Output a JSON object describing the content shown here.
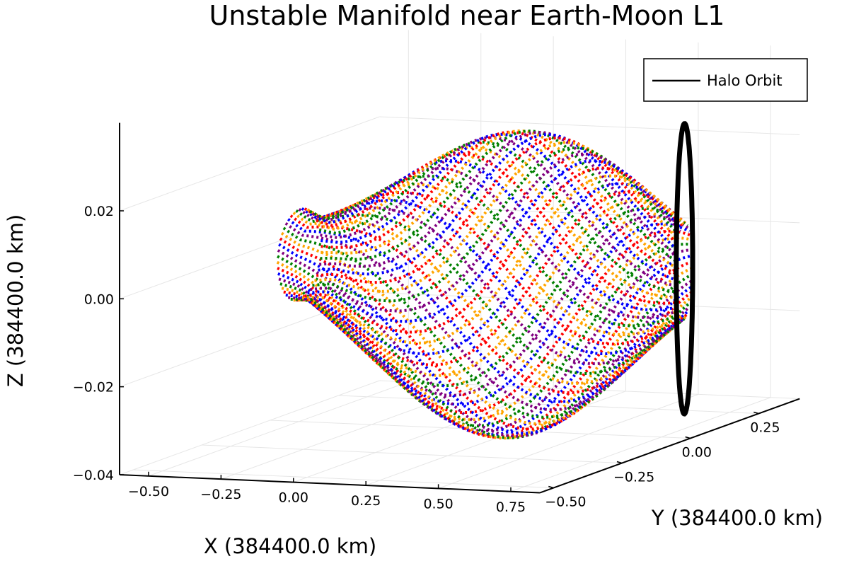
{
  "chart_data": {
    "type": "line3d",
    "title": "Unstable Manifold near Earth-Moon L1",
    "xlabel": "X (384400.0 km)",
    "ylabel": "Y (384400.0 km)",
    "zlabel": "Z (384400.0 km)",
    "xlim": [
      -0.6,
      0.85
    ],
    "ylim": [
      -0.55,
      0.4
    ],
    "zlim": [
      -0.04,
      0.04
    ],
    "x_ticks": [
      -0.5,
      -0.25,
      0.0,
      0.25,
      0.5,
      0.75
    ],
    "x_tick_labels": [
      "−0.50",
      "−0.25",
      "0.00",
      "0.25",
      "0.50",
      "0.75"
    ],
    "y_ticks": [
      -0.5,
      -0.25,
      0.0,
      0.25
    ],
    "y_tick_labels": [
      "−0.50",
      "−0.25",
      "0.00",
      "0.25"
    ],
    "z_ticks": [
      -0.04,
      -0.02,
      0.0,
      0.02
    ],
    "z_tick_labels": [
      "−0.04",
      "−0.02",
      "0.00",
      "0.02"
    ],
    "grid": true,
    "legend": {
      "placement": "top-right",
      "entries": [
        "Halo Orbit"
      ]
    },
    "halo_orbit": {
      "name": "Halo Orbit",
      "color": "#000000",
      "center": {
        "x": 0.83,
        "y": 0.0,
        "z": 0.0
      },
      "amplitude": {
        "y": 0.03,
        "z": 0.025
      }
    },
    "manifold": {
      "trajectory_count": 48,
      "point_count": 60,
      "colors": [
        "#0000ff",
        "#ff0000",
        "#ffa500",
        "#008000",
        "#800080"
      ],
      "line_style": "dotted",
      "x_range": [
        -0.5,
        0.83
      ],
      "z_range": [
        -0.034,
        0.033
      ]
    }
  }
}
